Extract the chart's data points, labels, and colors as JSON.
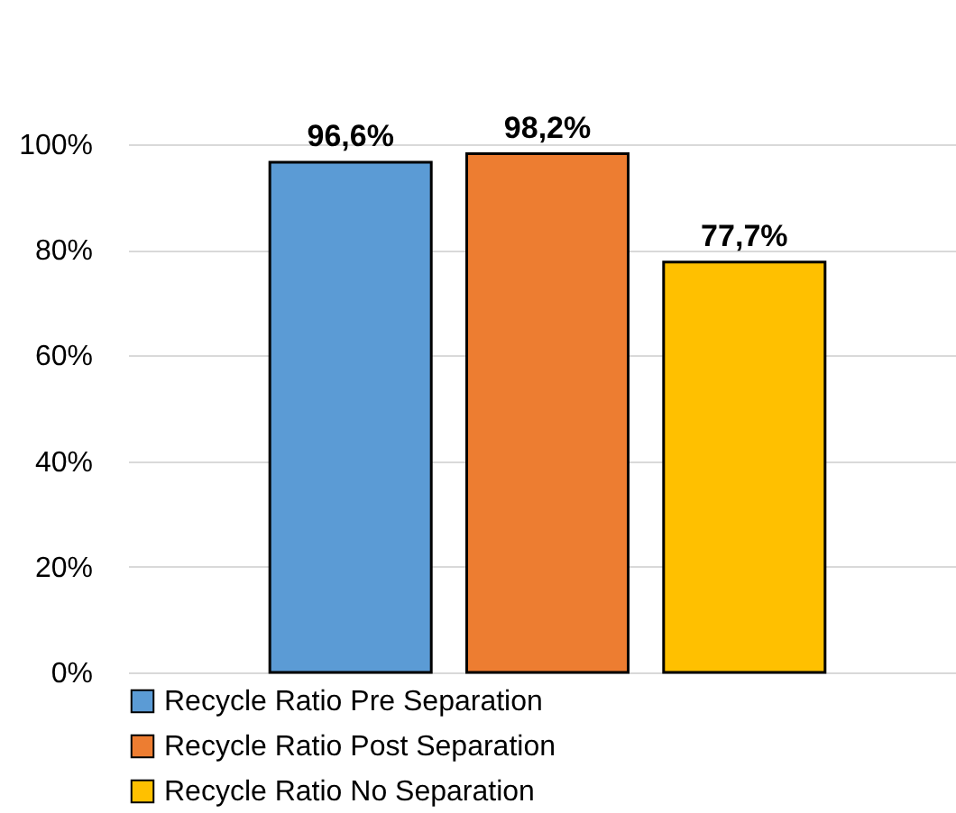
{
  "chart_data": {
    "type": "bar",
    "categories": [
      null
    ],
    "series": [
      {
        "name": "Recycle Ratio Pre Separation",
        "color": "#5b9bd5",
        "values": [
          96.6
        ],
        "value_labels": [
          "96,6%"
        ]
      },
      {
        "name": "Recycle Ratio Post Separation",
        "color": "#ed7d31",
        "values": [
          98.2
        ],
        "value_labels": [
          "98,2%"
        ]
      },
      {
        "name": "Recycle Ratio No Separation",
        "color": "#ffc000",
        "values": [
          77.7
        ],
        "value_labels": [
          "77,7%"
        ]
      }
    ],
    "ylim": [
      0,
      100
    ],
    "yticks": [
      {
        "value": 0,
        "label": "0%"
      },
      {
        "value": 20,
        "label": "20%"
      },
      {
        "value": 40,
        "label": "40%"
      },
      {
        "value": 60,
        "label": "60%"
      },
      {
        "value": 80,
        "label": "80%"
      },
      {
        "value": 100,
        "label": "100%"
      }
    ],
    "grid": "y",
    "legend": "bottom"
  }
}
